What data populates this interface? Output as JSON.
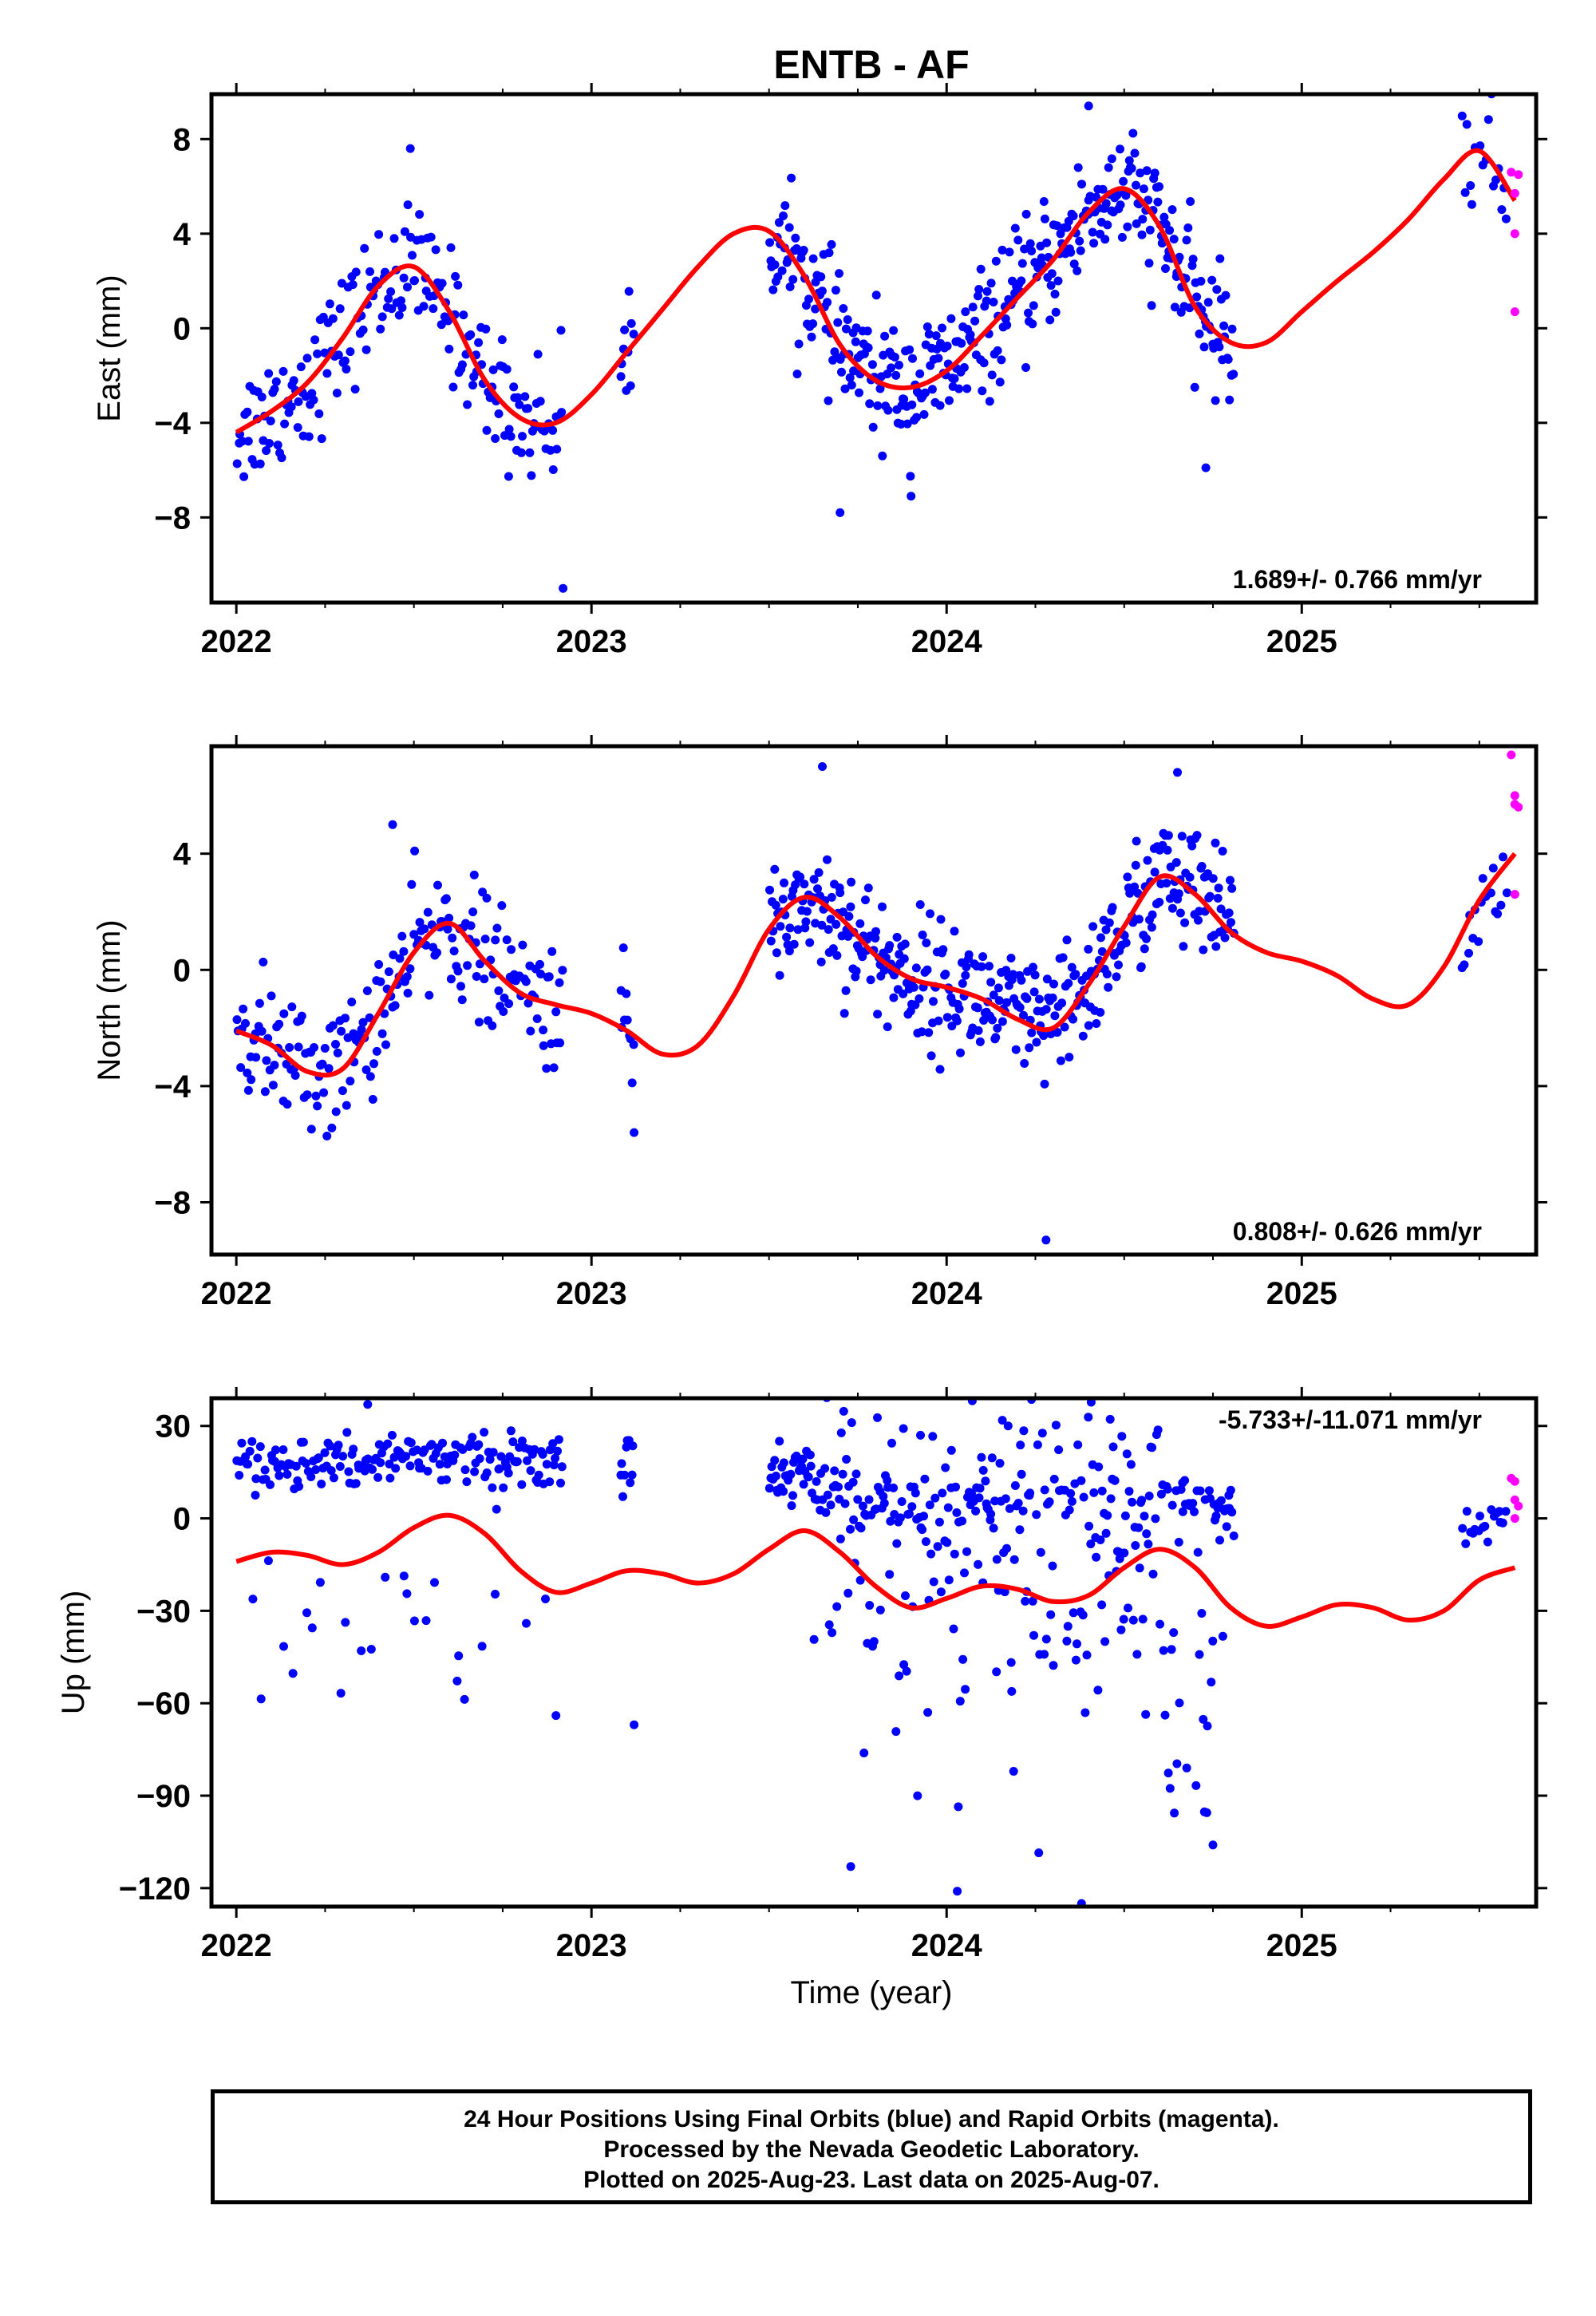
{
  "title": "ENTB - AF",
  "caption": {
    "line1": "24 Hour Positions Using Final Orbits (blue) and Rapid Orbits (magenta).",
    "line2": "Processed by the Nevada Geodetic Laboratory.",
    "line3": "Plotted on 2025-Aug-23. Last data on 2025-Aug-07."
  },
  "colors": {
    "final_orbits": "#0000ff",
    "rapid_orbits": "#ff00ff",
    "model": "#ff0000"
  },
  "chart_data": [
    {
      "type": "scatter",
      "ylabel": "East (mm)",
      "xlabel": "",
      "rate": "1.689+/- 0.766 mm/yr",
      "xlim": [
        2021.93,
        2025.66
      ],
      "ylim": [
        -11.6,
        9.9
      ],
      "xticks": [
        2022,
        2023,
        2024,
        2025
      ],
      "yticks": [
        8,
        4,
        0,
        -4,
        -8
      ],
      "final_orbits": {
        "season_2022": {
          "x_range": [
            2022.0,
            2022.92
          ],
          "count": 200
        },
        "season_2023": {
          "x_range": [
            2023.08,
            2023.12
          ],
          "count": 10
        },
        "season_2024": {
          "x_range": [
            2023.5,
            2024.81
          ],
          "count": 380
        },
        "season_2025": {
          "x_range": [
            2025.45,
            2025.58
          ],
          "count": 18
        },
        "outliers": [
          [
            2022.92,
            -11.0
          ],
          [
            2023.7,
            -7.8
          ],
          [
            2023.9,
            -7.1
          ],
          [
            2024.73,
            -5.9
          ],
          [
            2022.49,
            7.6
          ],
          [
            2024.4,
            9.4
          ]
        ]
      },
      "rapid_orbits": {
        "x": [
          2025.59,
          2025.6,
          2025.6,
          2025.6,
          2025.61
        ],
        "y": [
          6.6,
          5.7,
          4.0,
          0.7,
          6.5
        ]
      },
      "model": {
        "x": [
          2022.0,
          2022.1,
          2022.2,
          2022.3,
          2022.4,
          2022.5,
          2022.6,
          2022.7,
          2022.8,
          2022.9,
          2023.0,
          2023.1,
          2023.2,
          2023.3,
          2023.4,
          2023.5,
          2023.6,
          2023.7,
          2023.8,
          2023.9,
          2024.0,
          2024.1,
          2024.2,
          2024.3,
          2024.4,
          2024.5,
          2024.6,
          2024.7,
          2024.8,
          2024.9,
          2025.0,
          2025.1,
          2025.2,
          2025.3,
          2025.4,
          2025.5,
          2025.6
        ],
        "y": [
          -4.4,
          -3.5,
          -2.3,
          -0.4,
          1.8,
          2.6,
          0.7,
          -2.2,
          -3.8,
          -4.0,
          -2.8,
          -1.0,
          0.8,
          2.6,
          4.0,
          4.1,
          2.2,
          -0.7,
          -2.2,
          -2.5,
          -1.8,
          -0.3,
          1.3,
          2.9,
          4.9,
          5.9,
          4.3,
          0.9,
          -0.6,
          -0.6,
          0.7,
          2.0,
          3.2,
          4.6,
          6.3,
          7.5,
          5.4
        ]
      }
    },
    {
      "type": "scatter",
      "ylabel": "North (mm)",
      "xlabel": "",
      "rate": "0.808+/- 0.626 mm/yr",
      "xlim": [
        2021.93,
        2025.66
      ],
      "ylim": [
        -9.8,
        7.7
      ],
      "xticks": [
        2022,
        2023,
        2024,
        2025
      ],
      "yticks": [
        4,
        0,
        -4,
        -8
      ],
      "final_orbits": {
        "season_2022": {
          "x_range": [
            2022.0,
            2022.92
          ],
          "count": 200
        },
        "season_2023": {
          "x_range": [
            2023.08,
            2023.12
          ],
          "count": 10
        },
        "season_2024": {
          "x_range": [
            2023.5,
            2024.81
          ],
          "count": 380
        },
        "season_2025": {
          "x_range": [
            2025.45,
            2025.58
          ],
          "count": 18
        },
        "outliers": [
          [
            2023.12,
            -5.6
          ],
          [
            2024.28,
            -9.3
          ],
          [
            2023.65,
            7.0
          ],
          [
            2024.65,
            6.8
          ],
          [
            2022.44,
            5.0
          ]
        ]
      },
      "rapid_orbits": {
        "x": [
          2025.59,
          2025.6,
          2025.6,
          2025.61,
          2025.6
        ],
        "y": [
          7.4,
          6.0,
          5.7,
          5.6,
          2.6
        ]
      },
      "model": {
        "x": [
          2022.0,
          2022.1,
          2022.2,
          2022.3,
          2022.4,
          2022.5,
          2022.6,
          2022.7,
          2022.8,
          2022.9,
          2023.0,
          2023.1,
          2023.2,
          2023.3,
          2023.4,
          2023.5,
          2023.6,
          2023.7,
          2023.8,
          2023.9,
          2024.0,
          2024.1,
          2024.2,
          2024.3,
          2024.4,
          2024.5,
          2024.6,
          2024.7,
          2024.8,
          2024.9,
          2025.0,
          2025.1,
          2025.2,
          2025.3,
          2025.4,
          2025.5,
          2025.6
        ],
        "y": [
          -2.1,
          -2.6,
          -3.5,
          -3.4,
          -1.5,
          0.6,
          1.6,
          0.3,
          -0.8,
          -1.2,
          -1.5,
          -2.1,
          -2.9,
          -2.6,
          -0.9,
          1.4,
          2.5,
          1.8,
          0.5,
          -0.3,
          -0.6,
          -1.0,
          -1.7,
          -2.0,
          -0.5,
          1.5,
          3.2,
          2.6,
          1.3,
          0.6,
          0.3,
          -0.2,
          -1.0,
          -1.2,
          0.1,
          2.4,
          4.0
        ]
      }
    },
    {
      "type": "scatter",
      "ylabel": "Up (mm)",
      "xlabel": "Time (year)",
      "rate": "-5.733+/-11.071 mm/yr",
      "xlim": [
        2021.93,
        2025.66
      ],
      "ylim": [
        -126,
        39
      ],
      "xticks": [
        2022,
        2023,
        2024,
        2025
      ],
      "yticks": [
        30,
        0,
        -30,
        -60,
        -90,
        -120
      ],
      "final_orbits": {
        "season_2022": {
          "x_range": [
            2022.0,
            2022.92
          ],
          "count": 200
        },
        "season_2023": {
          "x_range": [
            2023.08,
            2023.12
          ],
          "count": 10
        },
        "season_2024": {
          "x_range": [
            2023.5,
            2024.81
          ],
          "count": 380
        },
        "season_2025": {
          "x_range": [
            2025.45,
            2025.58
          ],
          "count": 18
        },
        "outliers": [
          [
            2022.37,
            37
          ],
          [
            2023.12,
            -67
          ],
          [
            2024.38,
            -125
          ],
          [
            2024.03,
            -121
          ],
          [
            2023.73,
            -113
          ],
          [
            2024.75,
            -106
          ],
          [
            2022.9,
            -64
          ]
        ]
      },
      "rapid_orbits": {
        "x": [
          2025.59,
          2025.6,
          2025.6,
          2025.61,
          2025.6
        ],
        "y": [
          13,
          12,
          6,
          4,
          0
        ]
      },
      "model": {
        "x": [
          2022.0,
          2022.1,
          2022.2,
          2022.3,
          2022.4,
          2022.5,
          2022.6,
          2022.7,
          2022.8,
          2022.9,
          2023.0,
          2023.1,
          2023.2,
          2023.3,
          2023.4,
          2023.5,
          2023.6,
          2023.7,
          2023.8,
          2023.9,
          2024.0,
          2024.1,
          2024.2,
          2024.3,
          2024.4,
          2024.5,
          2024.6,
          2024.7,
          2024.8,
          2024.9,
          2025.0,
          2025.1,
          2025.2,
          2025.3,
          2025.4,
          2025.5,
          2025.6
        ],
        "y": [
          -14,
          -11,
          -12,
          -15,
          -11,
          -3,
          1,
          -5,
          -17,
          -24,
          -21,
          -17,
          -18,
          -21,
          -18,
          -10,
          -4,
          -11,
          -22,
          -29,
          -26,
          -22,
          -23,
          -27,
          -25,
          -16,
          -10,
          -16,
          -29,
          -35,
          -32,
          -28,
          -29,
          -33,
          -30,
          -20,
          -16
        ]
      }
    }
  ]
}
